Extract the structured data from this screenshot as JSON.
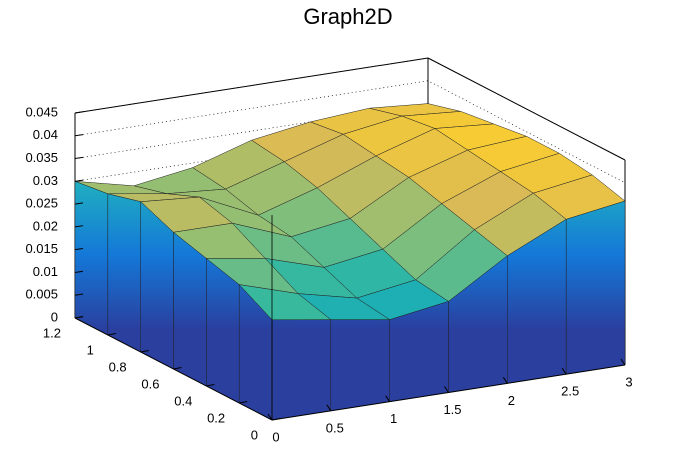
{
  "chart_data": {
    "type": "surface",
    "title": "Graph2D",
    "x": [
      0,
      0.5,
      1,
      1.5,
      2,
      2.5,
      3
    ],
    "y": [
      0,
      0.2,
      0.4,
      0.6,
      0.8,
      1,
      1.2
    ],
    "z": [
      [
        0.022,
        0.02,
        0.018,
        0.02,
        0.028,
        0.034,
        0.036
      ],
      [
        0.026,
        0.022,
        0.019,
        0.021,
        0.03,
        0.036,
        0.038
      ],
      [
        0.028,
        0.026,
        0.022,
        0.024,
        0.032,
        0.037,
        0.039
      ],
      [
        0.03,
        0.03,
        0.025,
        0.027,
        0.034,
        0.038,
        0.039
      ],
      [
        0.033,
        0.032,
        0.026,
        0.03,
        0.035,
        0.039,
        0.038
      ],
      [
        0.031,
        0.029,
        0.028,
        0.032,
        0.036,
        0.038,
        0.037
      ],
      [
        0.03,
        0.027,
        0.029,
        0.033,
        0.035,
        0.036,
        0.035
      ]
    ],
    "xlim": [
      0,
      3
    ],
    "ylim": [
      0,
      1.2
    ],
    "zlim": [
      0,
      0.045
    ],
    "xticks": [
      0,
      0.5,
      1,
      1.5,
      2,
      2.5,
      3
    ],
    "yticks": [
      0,
      0.2,
      0.4,
      0.6,
      0.8,
      1,
      1.2
    ],
    "zticks": [
      0,
      0.005,
      0.01,
      0.015,
      0.02,
      0.025,
      0.03,
      0.035,
      0.04,
      0.045
    ],
    "grid": true
  }
}
